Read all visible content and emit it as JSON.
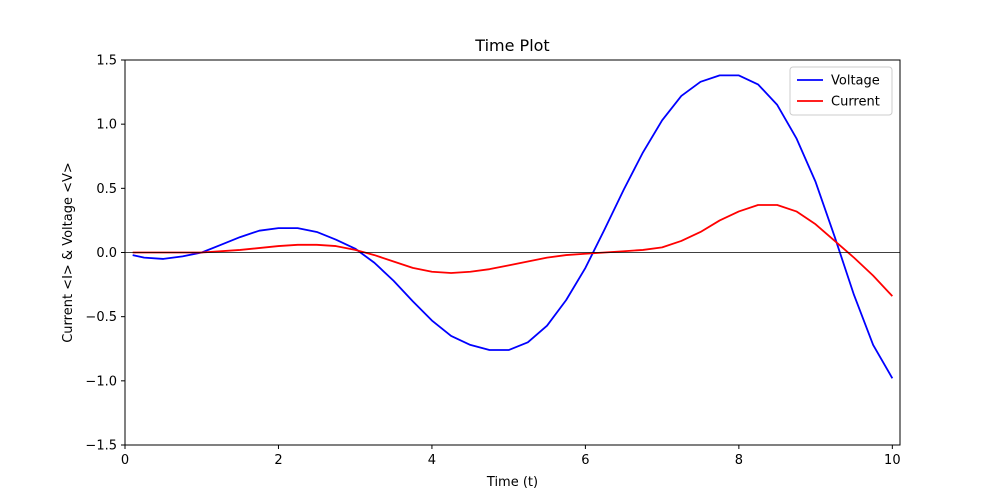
{
  "chart_data": {
    "type": "line",
    "title": "Time Plot",
    "xlabel": "Time (t)",
    "ylabel": "Current <I> & Voltage <V>",
    "xlim": [
      0,
      10.1
    ],
    "ylim": [
      -1.5,
      1.5
    ],
    "xticks": [
      0,
      2,
      4,
      6,
      8,
      10
    ],
    "yticks": [
      -1.5,
      -1.0,
      -0.5,
      0.0,
      0.5,
      1.0,
      1.5
    ],
    "xtick_labels": [
      "0",
      "2",
      "4",
      "6",
      "8",
      "10"
    ],
    "ytick_labels": [
      "−1.5",
      "−1.0",
      "−0.5",
      "0.0",
      "0.5",
      "1.0",
      "1.5"
    ],
    "grid": false,
    "zero_line": true,
    "legend": {
      "position": "top-right"
    },
    "series": [
      {
        "name": "Voltage",
        "color": "#0000ff",
        "x": [
          0.1,
          0.25,
          0.5,
          0.75,
          1.0,
          1.25,
          1.5,
          1.75,
          2.0,
          2.25,
          2.5,
          2.75,
          3.0,
          3.25,
          3.5,
          3.75,
          4.0,
          4.25,
          4.5,
          4.75,
          5.0,
          5.25,
          5.5,
          5.75,
          6.0,
          6.25,
          6.5,
          6.75,
          7.0,
          7.25,
          7.5,
          7.75,
          8.0,
          8.25,
          8.5,
          8.75,
          9.0,
          9.25,
          9.5,
          9.75,
          10.0
        ],
        "y": [
          -0.02,
          -0.04,
          -0.05,
          -0.03,
          0.0,
          0.06,
          0.12,
          0.17,
          0.19,
          0.19,
          0.16,
          0.1,
          0.03,
          -0.08,
          -0.22,
          -0.38,
          -0.53,
          -0.65,
          -0.72,
          -0.76,
          -0.76,
          -0.7,
          -0.57,
          -0.37,
          -0.12,
          0.18,
          0.49,
          0.78,
          1.03,
          1.22,
          1.33,
          1.38,
          1.38,
          1.31,
          1.15,
          0.89,
          0.55,
          0.12,
          -0.33,
          -0.72,
          -0.98
        ]
      },
      {
        "name": "Current",
        "color": "#ff0000",
        "x": [
          0.1,
          0.5,
          1.0,
          1.5,
          2.0,
          2.25,
          2.5,
          2.75,
          3.0,
          3.25,
          3.5,
          3.75,
          4.0,
          4.25,
          4.5,
          4.75,
          5.0,
          5.25,
          5.5,
          5.75,
          6.0,
          6.25,
          6.5,
          6.75,
          7.0,
          7.25,
          7.5,
          7.75,
          8.0,
          8.25,
          8.5,
          8.75,
          9.0,
          9.25,
          9.5,
          9.75,
          10.0
        ],
        "y": [
          0.0,
          0.0,
          0.0,
          0.02,
          0.05,
          0.06,
          0.06,
          0.05,
          0.02,
          -0.02,
          -0.07,
          -0.12,
          -0.15,
          -0.16,
          -0.15,
          -0.13,
          -0.1,
          -0.07,
          -0.04,
          -0.02,
          -0.01,
          0.0,
          0.01,
          0.02,
          0.04,
          0.09,
          0.16,
          0.25,
          0.32,
          0.37,
          0.37,
          0.32,
          0.22,
          0.09,
          -0.04,
          -0.18,
          -0.34
        ]
      }
    ]
  }
}
